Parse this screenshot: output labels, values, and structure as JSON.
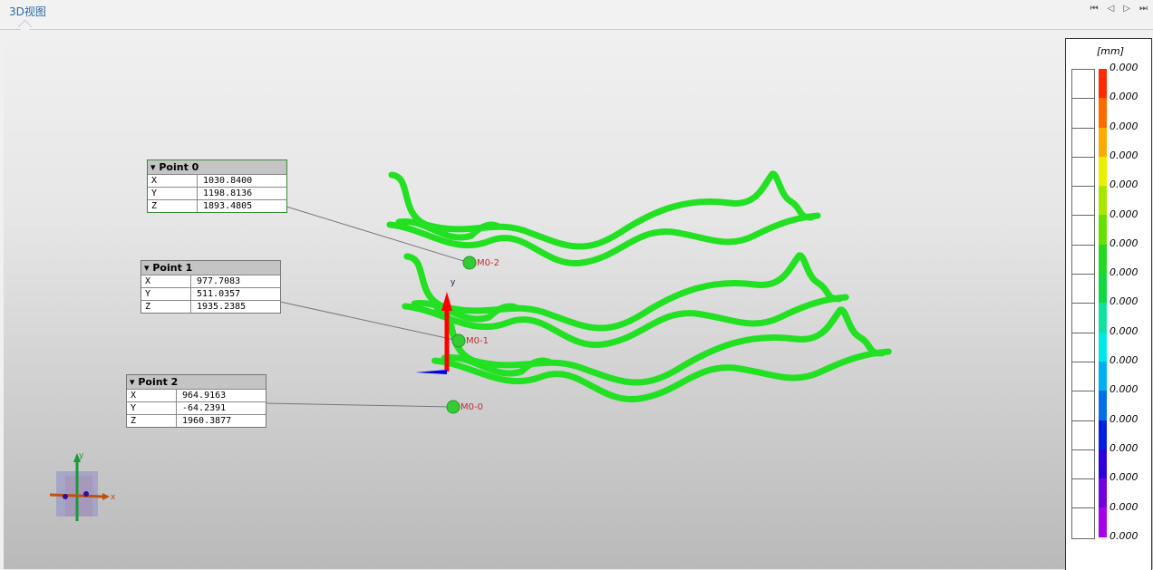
{
  "tab": {
    "label": "3D视图"
  },
  "nav": [
    "⏮",
    "◁",
    "▷",
    "⏭"
  ],
  "points": [
    {
      "title": "Point 0",
      "rows": [
        {
          "k": "X",
          "v": "1030.8400"
        },
        {
          "k": "Y",
          "v": "1198.8136"
        },
        {
          "k": "Z",
          "v": "1893.4805"
        }
      ],
      "marker": "M0-2"
    },
    {
      "title": "Point 1",
      "rows": [
        {
          "k": "X",
          "v": "977.7083"
        },
        {
          "k": "Y",
          "v": "511.0357"
        },
        {
          "k": "Z",
          "v": "1935.2385"
        }
      ],
      "marker": "M0-1"
    },
    {
      "title": "Point 2",
      "rows": [
        {
          "k": "X",
          "v": "964.9163"
        },
        {
          "k": "Y",
          "v": "-64.2391"
        },
        {
          "k": "Z",
          "v": "1960.3877"
        }
      ],
      "marker": "M0-0"
    }
  ],
  "axes": {
    "y": "y",
    "x": "x"
  },
  "legend": {
    "unit": "[mm]",
    "labels": [
      "0.000",
      "0.000",
      "0.000",
      "0.000",
      "0.000",
      "0.000",
      "0.000",
      "0.000",
      "0.000",
      "0.000",
      "0.000",
      "0.000",
      "0.000",
      "0.000",
      "0.000",
      "0.000",
      "0.000"
    ],
    "colors": [
      "#ff2a00",
      "#ff6a00",
      "#ffaa00",
      "#eaf000",
      "#a8e800",
      "#66e000",
      "#22d820",
      "#10d840",
      "#10e0a0",
      "#00e8e8",
      "#00b0f0",
      "#0070e8",
      "#0020e0",
      "#2a00e0",
      "#7000e0",
      "#a800e8"
    ]
  },
  "colors": {
    "strand": "#22e022",
    "y_arrow": "#ff0000",
    "x_arrow": "#0000ff",
    "selected_border": "#3a8a3a"
  }
}
